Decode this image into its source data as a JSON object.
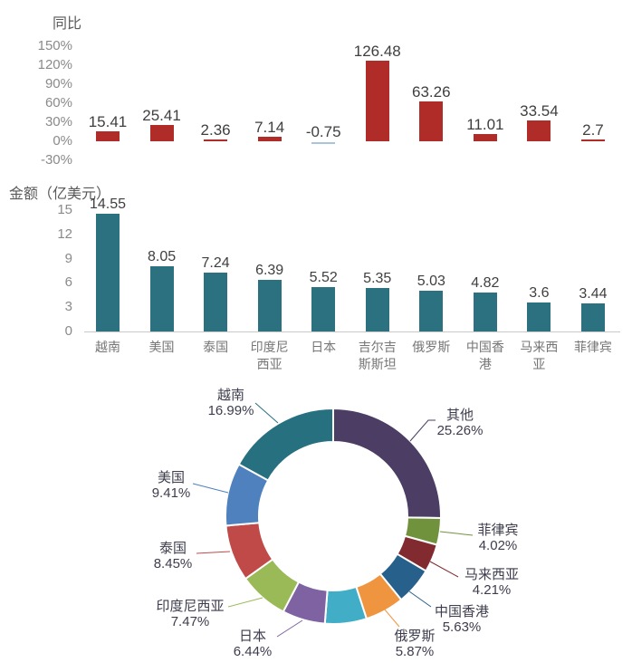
{
  "chart_data": [
    {
      "type": "bar",
      "title": "同比",
      "categories": [
        "越南",
        "美国",
        "泰国",
        "印度尼西亚",
        "日本",
        "吉尔吉斯斯坦",
        "俄罗斯",
        "中国香港",
        "马来西亚",
        "菲律宾"
      ],
      "values": [
        15.41,
        25.41,
        2.36,
        7.14,
        -0.75,
        126.48,
        63.26,
        11.01,
        33.54,
        2.7
      ],
      "value_labels": [
        "15.41",
        "25.41",
        "2.36",
        "7.14",
        "-0.75",
        "126.48",
        "63.26",
        "11.01",
        "33.54",
        "2.7"
      ],
      "yticks": [
        "150%",
        "120%",
        "90%",
        "60%",
        "30%",
        "0%",
        "-30%"
      ],
      "ylim": [
        -30,
        150
      ],
      "grid": false,
      "x_axis_labels_shown": false,
      "bar_color": "#b02c28",
      "negative_bar_color": "#a9c5de",
      "value_label_color": "#3f3f3f",
      "tick_color": "#8a8a8a"
    },
    {
      "type": "bar",
      "title": "金额（亿美元）",
      "categories": [
        "越南",
        "美国",
        "泰国",
        "印度尼西亚",
        "日本",
        "吉尔吉斯斯坦",
        "俄罗斯",
        "中国香港",
        "马来西亚",
        "菲律宾"
      ],
      "values": [
        14.55,
        8.05,
        7.24,
        6.39,
        5.52,
        5.35,
        5.03,
        4.82,
        3.6,
        3.44
      ],
      "value_labels": [
        "14.55",
        "8.05",
        "7.24",
        "6.39",
        "5.52",
        "5.35",
        "5.03",
        "4.82",
        "3.6",
        "3.44"
      ],
      "yticks": [
        "15",
        "12",
        "9",
        "6",
        "3",
        "0"
      ],
      "ylim": [
        0,
        15
      ],
      "grid": false,
      "x_axis_labels_shown": true,
      "bar_color": "#2b7180",
      "value_label_color": "#3f3f3f",
      "tick_color": "#8a8a8a"
    },
    {
      "type": "pie",
      "subtype": "donut",
      "legend_position": "none",
      "labels": "callout",
      "segments": [
        {
          "name": "其他",
          "value": 25.26,
          "pct_label": "25.26%",
          "color": "#4b3d63",
          "labeled": true
        },
        {
          "name": "菲律宾",
          "value": 4.02,
          "pct_label": "4.02%",
          "color": "#71923d",
          "labeled": true
        },
        {
          "name": "马来西亚",
          "value": 4.21,
          "pct_label": "4.21%",
          "color": "#812b30",
          "labeled": true
        },
        {
          "name": "中国香港",
          "value": 5.63,
          "pct_label": "5.63%",
          "color": "#28608c",
          "labeled": true
        },
        {
          "name": "俄罗斯",
          "value": 5.87,
          "pct_label": "5.87%",
          "color": "#f0953f",
          "labeled": true
        },
        {
          "name": "",
          "value": 6.25,
          "pct_label": "",
          "color": "#41adc7",
          "labeled": false,
          "estimated": true
        },
        {
          "name": "日本",
          "value": 6.44,
          "pct_label": "6.44%",
          "color": "#7e62a1",
          "labeled": true
        },
        {
          "name": "印度尼西亚",
          "value": 7.47,
          "pct_label": "7.47%",
          "color": "#99ba57",
          "labeled": true
        },
        {
          "name": "泰国",
          "value": 8.45,
          "pct_label": "8.45%",
          "color": "#c04a47",
          "labeled": true
        },
        {
          "name": "美国",
          "value": 9.41,
          "pct_label": "9.41%",
          "color": "#4e81bd",
          "labeled": true
        },
        {
          "name": "越南",
          "value": 16.99,
          "pct_label": "16.99%",
          "color": "#27707f",
          "labeled": true
        }
      ]
    }
  ]
}
